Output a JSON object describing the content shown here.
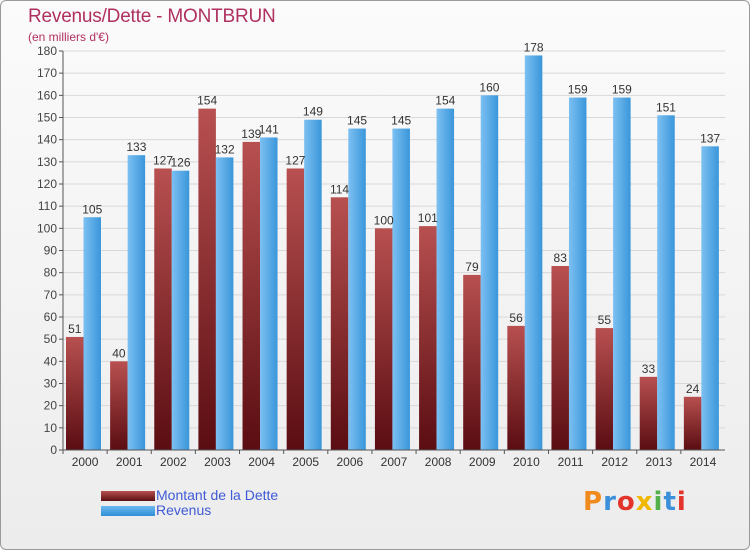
{
  "title": "Revenus/Dette - MONTBRUN",
  "subtitle": "(en milliers d'€)",
  "legend": {
    "debt_label": "Montant de la Dette",
    "revenue_label": "Revenus"
  },
  "logo": {
    "text": "Proxiti"
  },
  "colors": {
    "title": "#b03060",
    "legend_text": "#3f5ad6",
    "debt_top": "#b85050",
    "debt_bottom": "#5a0d12",
    "revenue_top": "#6cb8f0",
    "revenue_bottom": "#2f8fd6",
    "grid": "#d8d8d8"
  },
  "chart_data": {
    "type": "bar",
    "title": "Revenus/Dette - MONTBRUN",
    "ylabel": "(en milliers d'€)",
    "xlabel": "",
    "ylim": [
      0,
      180
    ],
    "ytick_step": 10,
    "grid": true,
    "legend_position": "bottom-left",
    "categories": [
      "2000",
      "2001",
      "2002",
      "2003",
      "2004",
      "2005",
      "2006",
      "2007",
      "2008",
      "2009",
      "2010",
      "2011",
      "2012",
      "2013",
      "2014"
    ],
    "series": [
      {
        "name": "Montant de la Dette",
        "values": [
          51,
          40,
          127,
          154,
          139,
          127,
          114,
          100,
          101,
          79,
          56,
          83,
          55,
          33,
          24
        ]
      },
      {
        "name": "Revenus",
        "values": [
          105,
          133,
          126,
          132,
          141,
          149,
          145,
          145,
          154,
          160,
          178,
          159,
          159,
          151,
          137
        ]
      }
    ]
  }
}
